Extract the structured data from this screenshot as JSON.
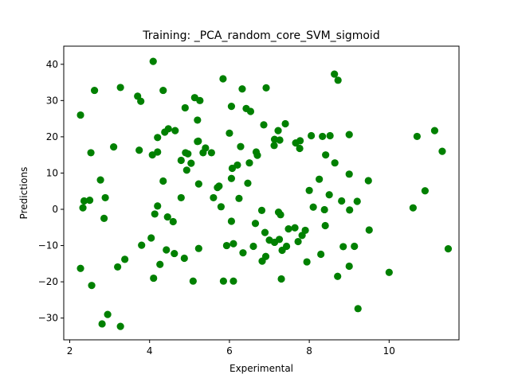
{
  "chart_data": {
    "type": "scatter",
    "title": "Training: _PCA_random_core_SVM_sigmoid",
    "xlabel": "Experimental",
    "ylabel": "Predictions",
    "xlim": [
      1.85,
      11.75
    ],
    "ylim": [
      -36,
      45
    ],
    "xticks": [
      2,
      4,
      6,
      8,
      10
    ],
    "yticks": [
      -30,
      -20,
      -10,
      0,
      10,
      20,
      30,
      40
    ],
    "grid": false,
    "marker_color": "#008000",
    "series": [
      {
        "points": [
          [
            2.27,
            26.0
          ],
          [
            2.27,
            -16.3
          ],
          [
            2.33,
            0.4
          ],
          [
            2.36,
            2.3
          ],
          [
            2.5,
            2.5
          ],
          [
            2.53,
            15.6
          ],
          [
            2.55,
            -21.0
          ],
          [
            2.62,
            32.8
          ],
          [
            2.77,
            8.1
          ],
          [
            2.81,
            -31.6
          ],
          [
            2.86,
            -2.5
          ],
          [
            2.89,
            3.2
          ],
          [
            2.95,
            -29.0
          ],
          [
            3.1,
            17.2
          ],
          [
            3.2,
            -15.9
          ],
          [
            3.27,
            -32.3
          ],
          [
            3.27,
            33.6
          ],
          [
            3.38,
            -13.8
          ],
          [
            3.7,
            31.2
          ],
          [
            3.74,
            16.3
          ],
          [
            3.78,
            29.8
          ],
          [
            3.8,
            -9.9
          ],
          [
            4.04,
            -7.9
          ],
          [
            4.09,
            40.8
          ],
          [
            4.07,
            15.0
          ],
          [
            4.1,
            -19.0
          ],
          [
            4.13,
            -1.3
          ],
          [
            4.2,
            0.9
          ],
          [
            4.2,
            19.8
          ],
          [
            4.2,
            15.8
          ],
          [
            4.26,
            -15.2
          ],
          [
            4.34,
            7.8
          ],
          [
            4.34,
            32.8
          ],
          [
            4.38,
            21.3
          ],
          [
            4.42,
            -11.2
          ],
          [
            4.45,
            -2.1
          ],
          [
            4.47,
            22.2
          ],
          [
            4.59,
            -3.4
          ],
          [
            4.62,
            -12.2
          ],
          [
            4.64,
            21.7
          ],
          [
            4.79,
            3.2
          ],
          [
            4.79,
            13.5
          ],
          [
            4.87,
            -13.5
          ],
          [
            4.89,
            28.0
          ],
          [
            4.9,
            15.6
          ],
          [
            4.93,
            10.8
          ],
          [
            4.96,
            15.3
          ],
          [
            5.04,
            12.7
          ],
          [
            5.09,
            -19.8
          ],
          [
            5.13,
            30.8
          ],
          [
            5.2,
            18.7
          ],
          [
            5.2,
            24.6
          ],
          [
            5.22,
            18.8
          ],
          [
            5.23,
            -10.8
          ],
          [
            5.23,
            7.0
          ],
          [
            5.26,
            30.0
          ],
          [
            5.34,
            15.6
          ],
          [
            5.4,
            16.9
          ],
          [
            5.55,
            15.6
          ],
          [
            5.6,
            3.2
          ],
          [
            5.7,
            6.0
          ],
          [
            5.74,
            6.4
          ],
          [
            5.79,
            0.7
          ],
          [
            5.84,
            36.0
          ],
          [
            5.85,
            -19.8
          ],
          [
            5.93,
            -10.0
          ],
          [
            6.0,
            21.0
          ],
          [
            6.05,
            8.5
          ],
          [
            6.05,
            28.4
          ],
          [
            6.05,
            -3.3
          ],
          [
            6.07,
            11.3
          ],
          [
            6.1,
            -9.5
          ],
          [
            6.1,
            -19.8
          ],
          [
            6.2,
            12.2
          ],
          [
            6.24,
            3.0
          ],
          [
            6.28,
            17.3
          ],
          [
            6.32,
            33.2
          ],
          [
            6.34,
            -12.0
          ],
          [
            6.42,
            27.8
          ],
          [
            6.46,
            7.2
          ],
          [
            6.5,
            12.8
          ],
          [
            6.53,
            27.0
          ],
          [
            6.6,
            -10.2
          ],
          [
            6.65,
            -3.9
          ],
          [
            6.67,
            15.8
          ],
          [
            6.7,
            14.9
          ],
          [
            6.81,
            -0.3
          ],
          [
            6.82,
            -14.3
          ],
          [
            6.86,
            23.3
          ],
          [
            6.89,
            -6.4
          ],
          [
            6.91,
            -13.0
          ],
          [
            6.92,
            33.5
          ],
          [
            7.0,
            -8.5
          ],
          [
            7.12,
            17.6
          ],
          [
            7.13,
            19.3
          ],
          [
            7.13,
            -9.1
          ],
          [
            7.22,
            21.7
          ],
          [
            7.23,
            -0.8
          ],
          [
            7.25,
            -8.3
          ],
          [
            7.26,
            19.1
          ],
          [
            7.28,
            -1.5
          ],
          [
            7.3,
            -19.2
          ],
          [
            7.32,
            -11.3
          ],
          [
            7.4,
            23.6
          ],
          [
            7.43,
            -10.2
          ],
          [
            7.48,
            -5.4
          ],
          [
            7.64,
            -5.1
          ],
          [
            7.66,
            18.3
          ],
          [
            7.72,
            -8.9
          ],
          [
            7.76,
            16.8
          ],
          [
            7.77,
            18.9
          ],
          [
            7.82,
            -7.2
          ],
          [
            7.9,
            -5.8
          ],
          [
            7.94,
            -14.5
          ],
          [
            8.0,
            5.2
          ],
          [
            8.05,
            20.3
          ],
          [
            8.1,
            0.6
          ],
          [
            8.25,
            8.3
          ],
          [
            8.29,
            -12.4
          ],
          [
            8.33,
            20.1
          ],
          [
            8.38,
            -0.1
          ],
          [
            8.4,
            -4.5
          ],
          [
            8.41,
            15.0
          ],
          [
            8.5,
            4.0
          ],
          [
            8.52,
            20.3
          ],
          [
            8.63,
            37.3
          ],
          [
            8.64,
            12.8
          ],
          [
            8.72,
            35.6
          ],
          [
            8.71,
            -18.5
          ],
          [
            8.81,
            2.3
          ],
          [
            8.85,
            -10.3
          ],
          [
            9.0,
            20.6
          ],
          [
            9.0,
            -15.7
          ],
          [
            9.0,
            9.7
          ],
          [
            9.01,
            -0.2
          ],
          [
            9.13,
            -10.2
          ],
          [
            9.2,
            2.2
          ],
          [
            9.22,
            -27.4
          ],
          [
            9.48,
            7.9
          ],
          [
            9.5,
            -5.7
          ],
          [
            10.0,
            -17.4
          ],
          [
            10.6,
            0.4
          ],
          [
            10.7,
            20.1
          ],
          [
            10.9,
            5.1
          ],
          [
            11.14,
            21.7
          ],
          [
            11.33,
            16.0
          ],
          [
            11.48,
            -10.9
          ]
        ]
      }
    ]
  }
}
